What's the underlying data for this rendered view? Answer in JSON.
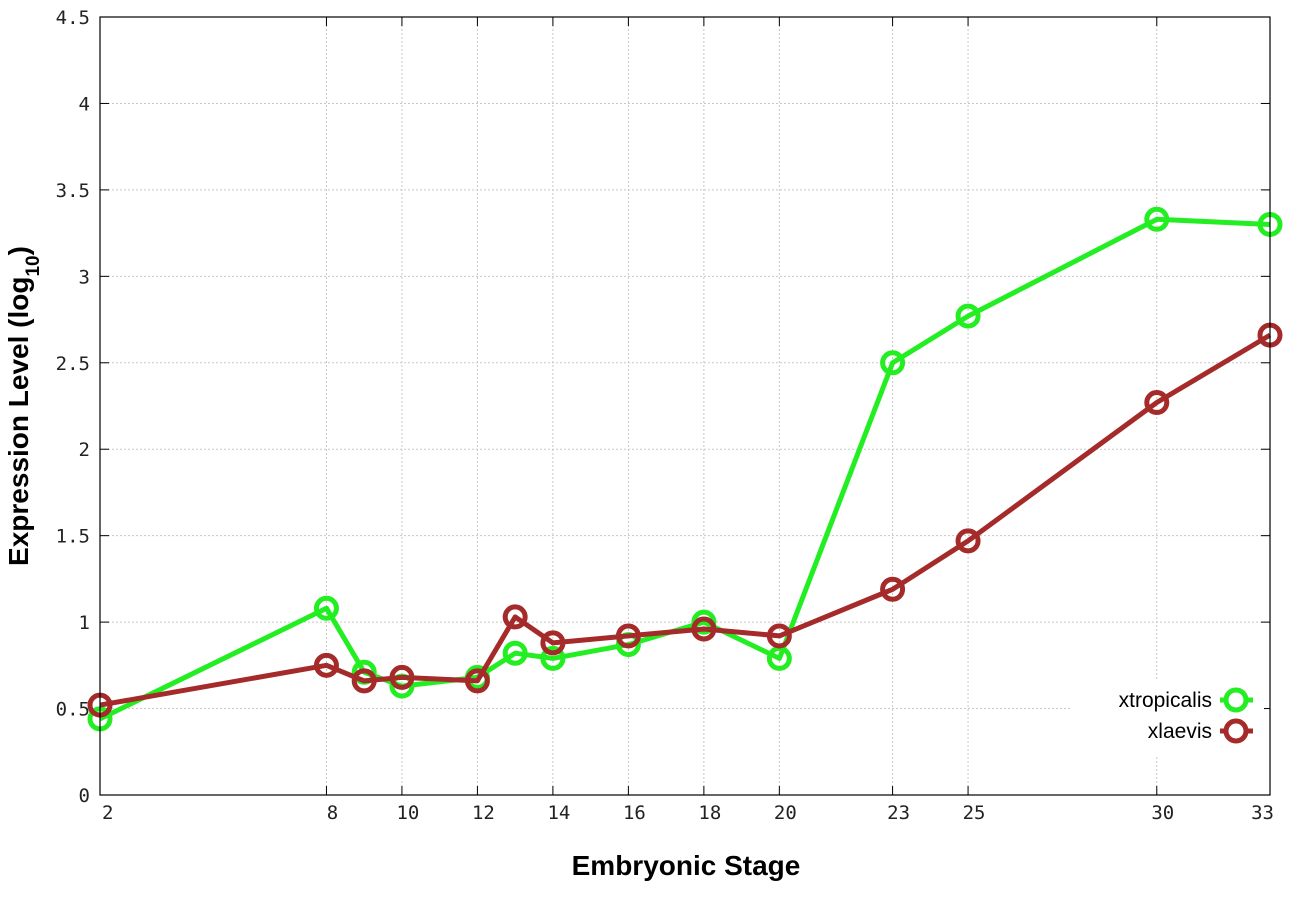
{
  "chart_data": {
    "type": "line",
    "title": "",
    "xlabel": "Embryonic Stage",
    "ylabel_main": "Expression Level (log",
    "ylabel_sub": "10",
    "ylabel_close": ")",
    "x_scale": "linear",
    "xlim": [
      2,
      33
    ],
    "ylim": [
      0,
      4.5
    ],
    "xticks": [
      2,
      8,
      10,
      12,
      14,
      16,
      18,
      20,
      23,
      25,
      30,
      33
    ],
    "yticks": [
      0,
      0.5,
      1,
      1.5,
      2,
      2.5,
      3,
      3.5,
      4,
      4.5
    ],
    "ytick_labels": [
      "0",
      "0.5",
      "1",
      "1.5",
      "2",
      "2.5",
      "3",
      "3.5",
      "4",
      "4.5"
    ],
    "grid": true,
    "legend_position": "bottom-right",
    "series": [
      {
        "name": "xtropicalis",
        "color": "#22ee22",
        "x": [
          2,
          8,
          9,
          10,
          12,
          13,
          14,
          16,
          18,
          20,
          23,
          25,
          30,
          33
        ],
        "y": [
          0.44,
          1.08,
          0.71,
          0.63,
          0.68,
          0.82,
          0.79,
          0.87,
          1.0,
          0.79,
          2.5,
          2.77,
          3.33,
          3.3
        ]
      },
      {
        "name": "xlaevis",
        "color": "#a52a2a",
        "x": [
          2,
          8,
          9,
          10,
          12,
          13,
          14,
          16,
          18,
          20,
          23,
          25,
          30,
          33
        ],
        "y": [
          0.52,
          0.75,
          0.66,
          0.68,
          0.66,
          1.03,
          0.88,
          0.92,
          0.96,
          0.92,
          1.19,
          1.47,
          2.27,
          2.66
        ]
      }
    ]
  }
}
